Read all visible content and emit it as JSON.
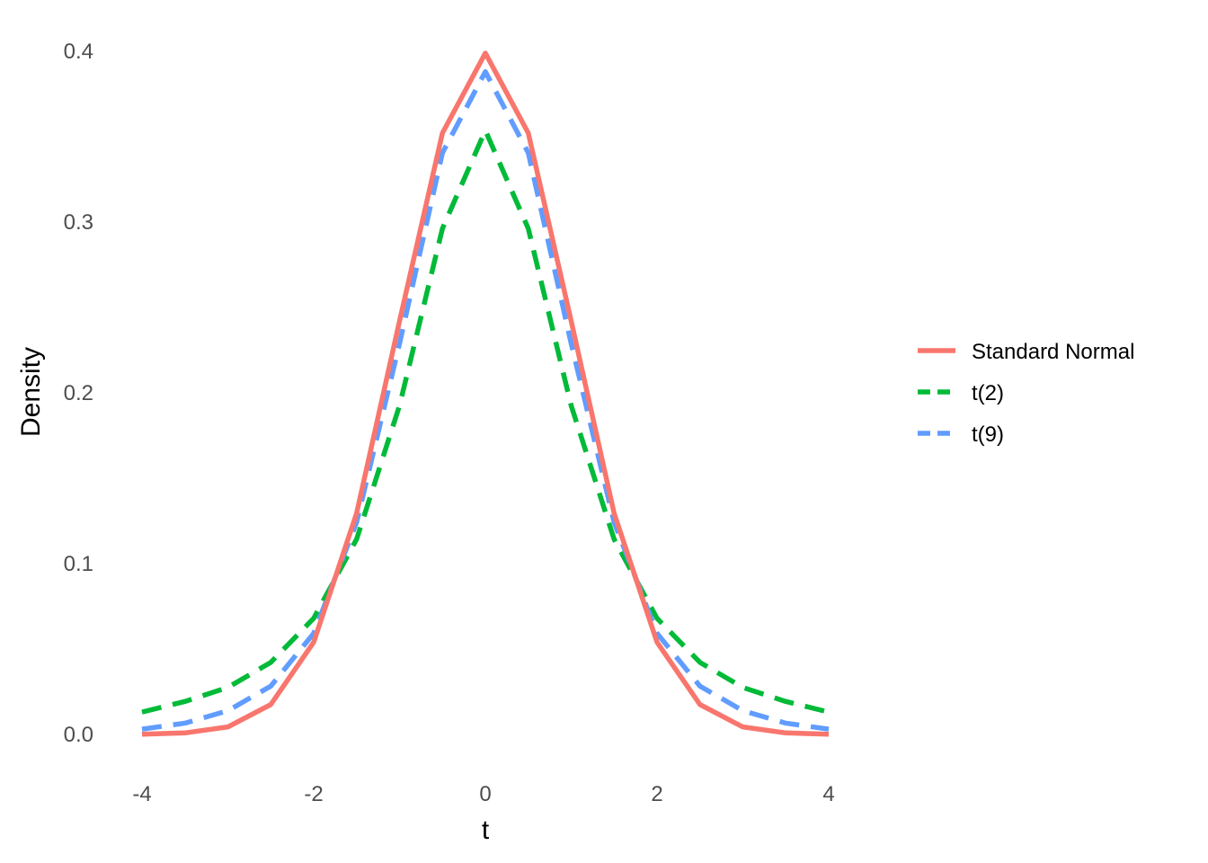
{
  "chart_data": {
    "type": "line",
    "xlabel": "t",
    "ylabel": "Density",
    "xlim": [
      -4,
      4
    ],
    "ylim": [
      0,
      0.4
    ],
    "x_ticks": [
      "-4",
      "-2",
      "0",
      "2",
      "4"
    ],
    "y_ticks": [
      "0.0",
      "0.1",
      "0.2",
      "0.3",
      "0.4"
    ],
    "grid": false,
    "legend_position": "right",
    "x": [
      -4,
      -3.5,
      -3,
      -2.5,
      -2,
      -1.5,
      -1,
      -0.5,
      0,
      0.5,
      1,
      1.5,
      2,
      2.5,
      3,
      3.5,
      4
    ],
    "series": [
      {
        "name": "Standard Normal",
        "color": "#F8766D",
        "style": "solid",
        "values": [
          0.0001,
          0.0009,
          0.0044,
          0.0175,
          0.054,
          0.1295,
          0.242,
          0.3521,
          0.3989,
          0.3521,
          0.242,
          0.1295,
          0.054,
          0.0175,
          0.0044,
          0.0009,
          0.0001
        ]
      },
      {
        "name": "t(2)",
        "color": "#00BA38",
        "style": "dashed",
        "values": [
          0.0131,
          0.0193,
          0.0275,
          0.0422,
          0.068,
          0.1143,
          0.1925,
          0.2962,
          0.3536,
          0.2962,
          0.1925,
          0.1143,
          0.068,
          0.0422,
          0.0275,
          0.0193,
          0.0131
        ]
      },
      {
        "name": "t(9)",
        "color": "#619CFF",
        "style": "dashed",
        "values": [
          0.0031,
          0.0066,
          0.0139,
          0.0283,
          0.0592,
          0.1242,
          0.2288,
          0.3405,
          0.388,
          0.3405,
          0.2288,
          0.1242,
          0.0592,
          0.0283,
          0.0139,
          0.0066,
          0.0031
        ]
      }
    ]
  }
}
